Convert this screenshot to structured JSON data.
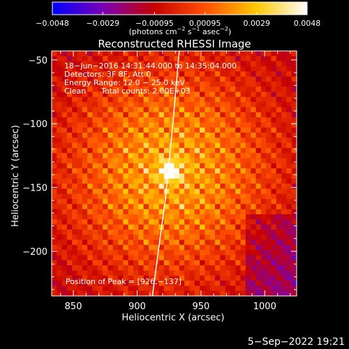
{
  "chart_data": {
    "type": "heatmap",
    "title": "Reconstructed RHESSI Image",
    "xlabel": "Heliocentric X (arcsec)",
    "ylabel": "Heliocentric Y (arcsec)",
    "xlim": [
      833,
      1025
    ],
    "ylim": [
      -235,
      -43
    ],
    "x_ticks": [
      850,
      900,
      950,
      1000
    ],
    "y_ticks": [
      -200,
      -150,
      -100,
      -50
    ],
    "x_tick_labels": [
      "850",
      "900",
      "950",
      "1000"
    ],
    "y_tick_labels": [
      "−200",
      "−150",
      "−100",
      "−50"
    ],
    "colorbar": {
      "min": -0.0048,
      "max": 0.0048,
      "ticks": [
        -0.0048,
        -0.0029,
        -0.00095,
        0.00095,
        0.0029,
        0.0048
      ],
      "tick_labels": [
        "−0.0048",
        "−0.0029",
        "−0.00095",
        "0.00095",
        "0.0029",
        "0.0048"
      ],
      "unit_parts": [
        "(photons cm",
        "−2",
        " s",
        "−1",
        " asec",
        "−2",
        ")"
      ],
      "colors": [
        "#0000ff",
        "#7a00b4",
        "#c80000",
        "#ff5000",
        "#ffc800",
        "#ffffff"
      ]
    },
    "annotations": {
      "time_range": "18−Jun−2016 14:31:44.000 to 14:35:04.000",
      "detectors": "Detectors: 3F 8F, Att 0",
      "energy_range": "Energy Range: 12.0 − 25.0 keV",
      "clean": "Clean",
      "total_counts": "Total counts: 2.00E+03",
      "peak": "Position of Peak = [926,−137]"
    },
    "peak_position": [
      926,
      -137
    ],
    "limb_points": [
      [
        933,
        -43
      ],
      [
        928,
        -100
      ],
      [
        922,
        -160
      ],
      [
        915,
        -212
      ],
      [
        912,
        -235
      ]
    ],
    "emission": {
      "peak_value": 0.0048,
      "background_value": -0.0012,
      "fringe_spacing_arcsec": 11
    },
    "footer_date": "5−Sep−2022 19:21"
  }
}
